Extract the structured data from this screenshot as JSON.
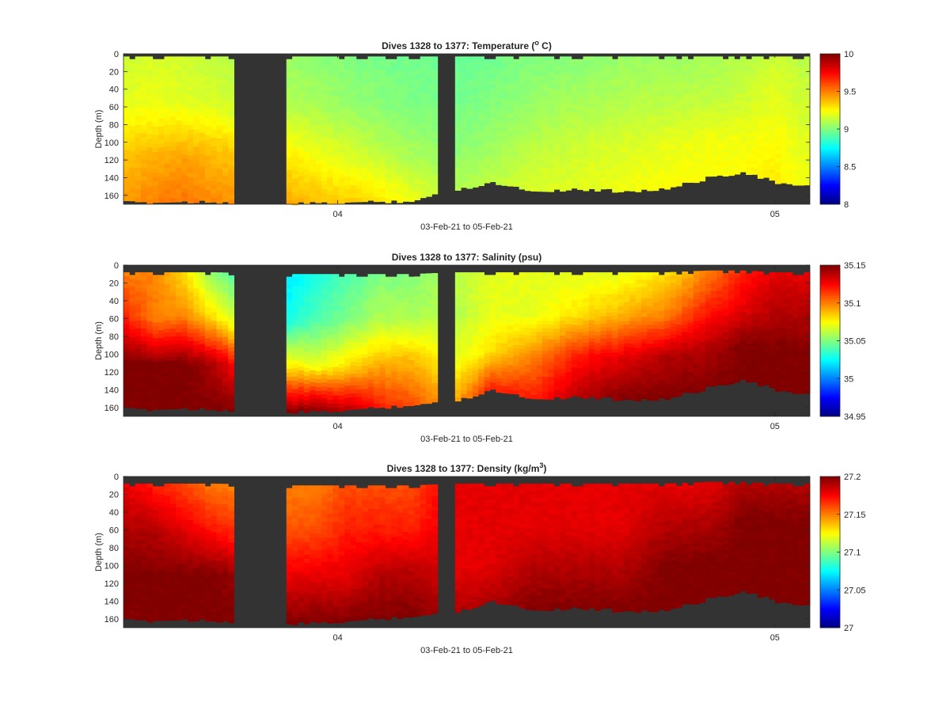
{
  "chart_data": [
    {
      "type": "heatmap",
      "title": "Dives 1328 to 1377: Temperature (",
      "title_unit_sup": "o",
      "title_suffix": " C)",
      "xlabel": "03-Feb-21 to 05-Feb-21",
      "ylabel": "Depth (m)",
      "ylim": [
        0,
        170
      ],
      "y_reversed": true,
      "yticks": [
        0,
        20,
        40,
        60,
        80,
        100,
        120,
        140,
        160
      ],
      "xlim": [
        3.51,
        5.08
      ],
      "xticks": [
        {
          "value": 4,
          "label": "04"
        },
        {
          "value": 5,
          "label": "05"
        }
      ],
      "colorbar": {
        "min": 8,
        "max": 10,
        "ticks": [
          8,
          8.5,
          9,
          9.5,
          10
        ],
        "tick_labels": [
          "8",
          "8.5",
          "9",
          "9.5",
          "10"
        ],
        "colormap": "jet"
      },
      "data_gaps": [
        [
          3.76,
          3.886
        ],
        [
          4.235,
          4.265
        ]
      ],
      "profiles": [
        {
          "t": 3.51,
          "bottom": 168,
          "top": 3,
          "values": [
            9.15,
            9.2,
            9.35,
            9.45
          ]
        },
        {
          "t": 3.58,
          "bottom": 168,
          "top": 3,
          "values": [
            9.18,
            9.22,
            9.4,
            9.5
          ]
        },
        {
          "t": 3.65,
          "bottom": 167,
          "top": 3,
          "values": [
            9.15,
            9.2,
            9.42,
            9.52
          ]
        },
        {
          "t": 3.72,
          "bottom": 167,
          "top": 3,
          "values": [
            9.12,
            9.18,
            9.38,
            9.48
          ]
        },
        {
          "t": 3.886,
          "bottom": 170,
          "top": 3,
          "values": [
            9.05,
            9.1,
            9.28,
            9.42
          ]
        },
        {
          "t": 3.95,
          "bottom": 169,
          "top": 3,
          "values": [
            9.02,
            9.08,
            9.22,
            9.38
          ]
        },
        {
          "t": 4.02,
          "bottom": 168,
          "top": 3,
          "values": [
            9.0,
            9.05,
            9.18,
            9.35
          ]
        },
        {
          "t": 4.1,
          "bottom": 167,
          "top": 3,
          "values": [
            8.98,
            9.02,
            9.12,
            9.3
          ]
        },
        {
          "t": 4.17,
          "bottom": 166,
          "top": 3,
          "values": [
            8.97,
            9.0,
            9.08,
            9.22
          ]
        },
        {
          "t": 4.265,
          "bottom": 155,
          "top": 3,
          "values": [
            8.95,
            8.98,
            9.02,
            9.1
          ]
        },
        {
          "t": 4.35,
          "bottom": 145,
          "top": 3,
          "values": [
            8.97,
            9.0,
            9.05,
            9.12
          ]
        },
        {
          "t": 4.45,
          "bottom": 155,
          "top": 3,
          "values": [
            9.0,
            9.05,
            9.12,
            9.18
          ]
        },
        {
          "t": 4.55,
          "bottom": 153,
          "top": 3,
          "values": [
            9.02,
            9.08,
            9.15,
            9.2
          ]
        },
        {
          "t": 4.65,
          "bottom": 155,
          "top": 3,
          "values": [
            9.05,
            9.1,
            9.18,
            9.22
          ]
        },
        {
          "t": 4.75,
          "bottom": 153,
          "top": 3,
          "values": [
            9.05,
            9.12,
            9.2,
            9.25
          ]
        },
        {
          "t": 4.85,
          "bottom": 140,
          "top": 3,
          "values": [
            9.08,
            9.12,
            9.22,
            9.25
          ]
        },
        {
          "t": 4.93,
          "bottom": 133,
          "top": 3,
          "values": [
            9.1,
            9.15,
            9.22,
            9.25
          ]
        },
        {
          "t": 5.0,
          "bottom": 145,
          "top": 3,
          "values": [
            9.15,
            9.2,
            9.25,
            9.28
          ]
        },
        {
          "t": 5.06,
          "bottom": 150,
          "top": 3,
          "values": [
            9.12,
            9.15,
            9.2,
            9.22
          ]
        }
      ]
    },
    {
      "type": "heatmap",
      "title": "Dives 1328 to 1377: Salinity (psu)",
      "xlabel": "03-Feb-21 to 05-Feb-21",
      "ylabel": "Depth (m)",
      "ylim": [
        0,
        170
      ],
      "y_reversed": true,
      "yticks": [
        0,
        20,
        40,
        60,
        80,
        100,
        120,
        140,
        160
      ],
      "xlim": [
        3.51,
        5.08
      ],
      "xticks": [
        {
          "value": 4,
          "label": "04"
        },
        {
          "value": 5,
          "label": "05"
        }
      ],
      "colorbar": {
        "min": 34.95,
        "max": 35.15,
        "ticks": [
          34.95,
          35,
          35.05,
          35.1,
          35.15
        ],
        "tick_labels": [
          "34.95",
          "35",
          "35.05",
          "35.1",
          "35.15"
        ],
        "colormap": "jet"
      },
      "data_gaps": [
        [
          3.76,
          3.886
        ],
        [
          4.235,
          4.265
        ]
      ],
      "profiles": [
        {
          "t": 3.51,
          "bottom": 162,
          "top": 8,
          "values": [
            35.1,
            35.12,
            35.15,
            35.15
          ]
        },
        {
          "t": 3.58,
          "bottom": 162,
          "top": 8,
          "values": [
            35.1,
            35.1,
            35.15,
            35.15
          ]
        },
        {
          "t": 3.65,
          "bottom": 161,
          "top": 8,
          "values": [
            35.08,
            35.1,
            35.15,
            35.15
          ]
        },
        {
          "t": 3.72,
          "bottom": 162,
          "top": 8,
          "values": [
            35.05,
            35.08,
            35.14,
            35.15
          ]
        },
        {
          "t": 3.886,
          "bottom": 166,
          "top": 10,
          "values": [
            35.02,
            35.03,
            35.08,
            35.15
          ]
        },
        {
          "t": 3.95,
          "bottom": 165,
          "top": 10,
          "values": [
            35.03,
            35.04,
            35.07,
            35.15
          ]
        },
        {
          "t": 4.02,
          "bottom": 163,
          "top": 10,
          "values": [
            35.04,
            35.05,
            35.08,
            35.14
          ]
        },
        {
          "t": 4.1,
          "bottom": 160,
          "top": 10,
          "values": [
            35.05,
            35.06,
            35.09,
            35.12
          ]
        },
        {
          "t": 4.17,
          "bottom": 157,
          "top": 10,
          "values": [
            35.05,
            35.06,
            35.09,
            35.11
          ]
        },
        {
          "t": 4.265,
          "bottom": 154,
          "top": 8,
          "values": [
            35.06,
            35.06,
            35.07,
            35.09
          ]
        },
        {
          "t": 4.35,
          "bottom": 140,
          "top": 8,
          "values": [
            35.07,
            35.07,
            35.08,
            35.12
          ]
        },
        {
          "t": 4.45,
          "bottom": 150,
          "top": 8,
          "values": [
            35.07,
            35.07,
            35.1,
            35.12
          ]
        },
        {
          "t": 4.55,
          "bottom": 148,
          "top": 8,
          "values": [
            35.07,
            35.08,
            35.12,
            35.14
          ]
        },
        {
          "t": 4.65,
          "bottom": 151,
          "top": 8,
          "values": [
            35.07,
            35.09,
            35.13,
            35.15
          ]
        },
        {
          "t": 4.75,
          "bottom": 151,
          "top": 8,
          "values": [
            35.08,
            35.1,
            35.14,
            35.15
          ]
        },
        {
          "t": 4.85,
          "bottom": 138,
          "top": 6,
          "values": [
            35.1,
            35.12,
            35.14,
            35.15
          ]
        },
        {
          "t": 4.93,
          "bottom": 128,
          "top": 6,
          "values": [
            35.12,
            35.13,
            35.15,
            35.15
          ]
        },
        {
          "t": 5.0,
          "bottom": 140,
          "top": 8,
          "values": [
            35.13,
            35.14,
            35.15,
            35.15
          ]
        },
        {
          "t": 5.06,
          "bottom": 146,
          "top": 8,
          "values": [
            35.13,
            35.14,
            35.15,
            35.15
          ]
        }
      ]
    },
    {
      "type": "heatmap",
      "title": "Dives 1328 to 1377: Density (kg/m",
      "title_unit_sup": "3",
      "title_suffix": ")",
      "xlabel": "03-Feb-21 to 05-Feb-21",
      "ylabel": "Depth (m)",
      "ylim": [
        0,
        170
      ],
      "y_reversed": true,
      "yticks": [
        0,
        20,
        40,
        60,
        80,
        100,
        120,
        140,
        160
      ],
      "xlim": [
        3.51,
        5.08
      ],
      "xticks": [
        {
          "value": 4,
          "label": "04"
        },
        {
          "value": 5,
          "label": "05"
        }
      ],
      "colorbar": {
        "min": 27,
        "max": 27.2,
        "ticks": [
          27,
          27.05,
          27.1,
          27.15,
          27.2
        ],
        "tick_labels": [
          "27",
          "27.05",
          "27.1",
          "27.15",
          "27.2"
        ],
        "colormap": "jet"
      },
      "data_gaps": [
        [
          3.76,
          3.886
        ],
        [
          4.235,
          4.265
        ]
      ],
      "profiles": [
        {
          "t": 3.51,
          "bottom": 162,
          "top": 8,
          "values": [
            27.18,
            27.19,
            27.2,
            27.2
          ]
        },
        {
          "t": 3.58,
          "bottom": 162,
          "top": 8,
          "values": [
            27.17,
            27.19,
            27.2,
            27.2
          ]
        },
        {
          "t": 3.65,
          "bottom": 161,
          "top": 8,
          "values": [
            27.16,
            27.18,
            27.2,
            27.2
          ]
        },
        {
          "t": 3.72,
          "bottom": 162,
          "top": 8,
          "values": [
            27.15,
            27.17,
            27.2,
            27.2
          ]
        },
        {
          "t": 3.886,
          "bottom": 166,
          "top": 10,
          "values": [
            27.15,
            27.16,
            27.18,
            27.2
          ]
        },
        {
          "t": 3.95,
          "bottom": 165,
          "top": 10,
          "values": [
            27.15,
            27.16,
            27.18,
            27.2
          ]
        },
        {
          "t": 4.02,
          "bottom": 163,
          "top": 10,
          "values": [
            27.16,
            27.17,
            27.18,
            27.2
          ]
        },
        {
          "t": 4.1,
          "bottom": 160,
          "top": 10,
          "values": [
            27.16,
            27.17,
            27.19,
            27.2
          ]
        },
        {
          "t": 4.17,
          "bottom": 157,
          "top": 10,
          "values": [
            27.16,
            27.17,
            27.19,
            27.2
          ]
        },
        {
          "t": 4.265,
          "bottom": 154,
          "top": 8,
          "values": [
            27.18,
            27.18,
            27.18,
            27.19
          ]
        },
        {
          "t": 4.35,
          "bottom": 140,
          "top": 8,
          "values": [
            27.18,
            27.18,
            27.18,
            27.19
          ]
        },
        {
          "t": 4.45,
          "bottom": 150,
          "top": 8,
          "values": [
            27.18,
            27.18,
            27.19,
            27.2
          ]
        },
        {
          "t": 4.55,
          "bottom": 148,
          "top": 8,
          "values": [
            27.18,
            27.18,
            27.19,
            27.2
          ]
        },
        {
          "t": 4.65,
          "bottom": 151,
          "top": 8,
          "values": [
            27.18,
            27.18,
            27.19,
            27.2
          ]
        },
        {
          "t": 4.75,
          "bottom": 151,
          "top": 8,
          "values": [
            27.18,
            27.19,
            27.2,
            27.2
          ]
        },
        {
          "t": 4.85,
          "bottom": 138,
          "top": 6,
          "values": [
            27.18,
            27.19,
            27.2,
            27.2
          ]
        },
        {
          "t": 4.93,
          "bottom": 128,
          "top": 6,
          "values": [
            27.19,
            27.2,
            27.2,
            27.2
          ]
        },
        {
          "t": 5.0,
          "bottom": 140,
          "top": 8,
          "values": [
            27.19,
            27.2,
            27.2,
            27.2
          ]
        },
        {
          "t": 5.06,
          "bottom": 146,
          "top": 8,
          "values": [
            27.19,
            27.2,
            27.2,
            27.2
          ]
        }
      ]
    }
  ],
  "colors": {
    "no_data": "#333333",
    "axis": "#262626",
    "background": "#ffffff"
  }
}
